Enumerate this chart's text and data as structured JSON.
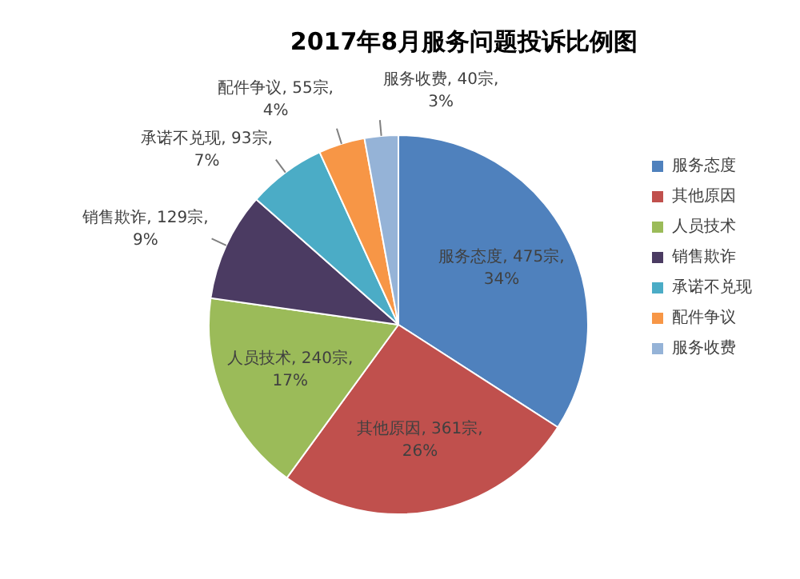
{
  "chart_data": {
    "type": "pie",
    "title": "2017年8月服务问题投诉比例图",
    "categories": [
      "服务态度",
      "其他原因",
      "人员技术",
      "销售欺诈",
      "承诺不兑现",
      "配件争议",
      "服务收费"
    ],
    "values": [
      475,
      361,
      240,
      129,
      93,
      55,
      40
    ],
    "colors": [
      "#4f81bd",
      "#c0504d",
      "#9bbb59",
      "#4b3b62",
      "#4bacc6",
      "#f79646",
      "#95b3d7"
    ],
    "value_labels": [
      "服务态度, 475宗, 34%",
      "其他原因, 361宗, 26%",
      "人员技术, 240宗, 17%",
      "销售欺诈, 129宗, 9%",
      "承诺不兑现, 93宗, 7%",
      "配件争议, 55宗, 4%",
      "服务收费, 40宗, 3%"
    ],
    "legend": "right"
  }
}
